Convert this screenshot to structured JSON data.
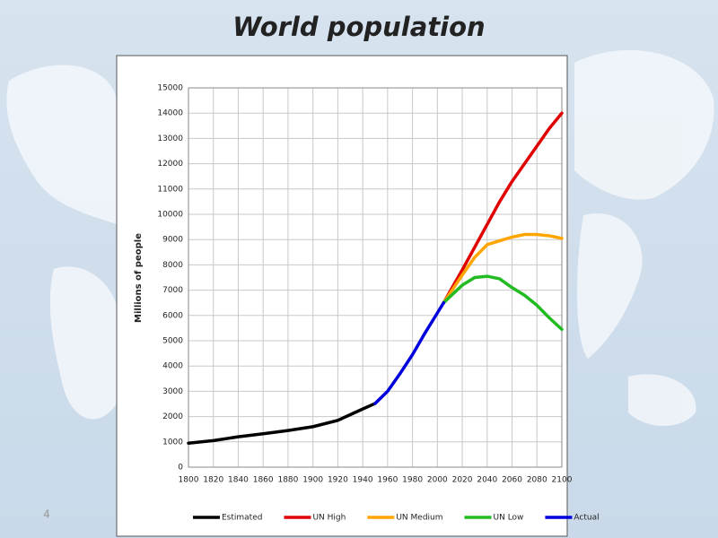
{
  "slide_number": "4",
  "chart_data": {
    "type": "line",
    "title": "World population",
    "y_label": "Millions of people",
    "xlim": [
      1800,
      2100
    ],
    "xticks": [
      1800,
      1820,
      1840,
      1860,
      1880,
      1900,
      1920,
      1940,
      1960,
      1980,
      2000,
      2020,
      2040,
      2060,
      2080,
      2100
    ],
    "ylim": [
      0,
      15000
    ],
    "yticks": [
      0,
      1000,
      2000,
      3000,
      4000,
      5000,
      6000,
      7000,
      8000,
      9000,
      10000,
      11000,
      12000,
      13000,
      14000,
      15000
    ],
    "grid": true,
    "legend": "bottom",
    "series": [
      {
        "name": "Estimated",
        "color": "#000000",
        "x": [
          1800,
          1820,
          1840,
          1860,
          1880,
          1900,
          1920,
          1940,
          1950
        ],
        "values": [
          950,
          1050,
          1200,
          1320,
          1450,
          1600,
          1850,
          2300,
          2520
        ]
      },
      {
        "name": "UN High",
        "color": "#e00000",
        "x": [
          2005,
          2020,
          2030,
          2040,
          2050,
          2060,
          2070,
          2080,
          2090,
          2100
        ],
        "values": [
          6500,
          7800,
          8700,
          9600,
          10500,
          11300,
          12000,
          12700,
          13400,
          14000
        ]
      },
      {
        "name": "UN Medium",
        "color": "#ffa500",
        "x": [
          2005,
          2020,
          2030,
          2040,
          2050,
          2060,
          2070,
          2080,
          2090,
          2100
        ],
        "values": [
          6500,
          7600,
          8300,
          8800,
          8950,
          9100,
          9200,
          9200,
          9150,
          9050
        ]
      },
      {
        "name": "UN Low",
        "color": "#22bb22",
        "x": [
          2005,
          2020,
          2030,
          2040,
          2050,
          2060,
          2070,
          2080,
          2090,
          2100
        ],
        "values": [
          6500,
          7200,
          7500,
          7550,
          7450,
          7100,
          6800,
          6400,
          5900,
          5450
        ]
      },
      {
        "name": "Actual",
        "color": "#0000dd",
        "x": [
          1950,
          1960,
          1970,
          1980,
          1990,
          2000,
          2005
        ],
        "values": [
          2520,
          3000,
          3700,
          4450,
          5300,
          6100,
          6500
        ]
      }
    ]
  }
}
